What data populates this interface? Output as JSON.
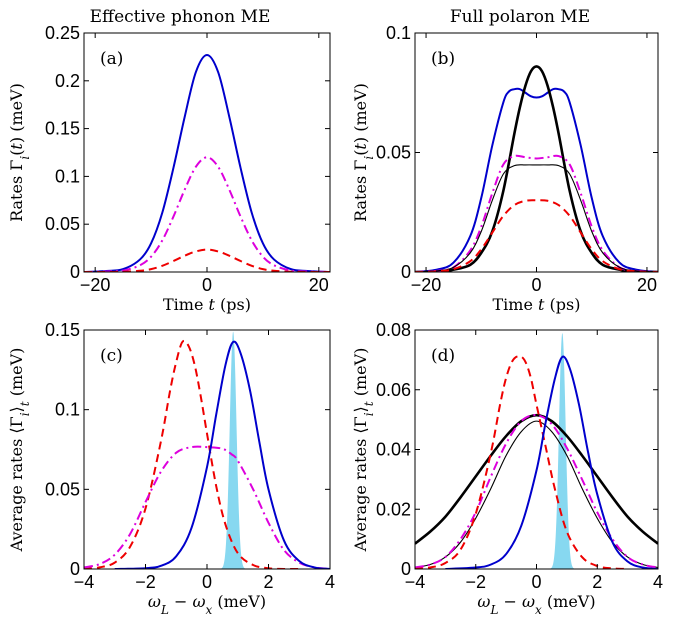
{
  "column_titles": [
    "Effective phonon ME",
    "Full polaron ME"
  ],
  "chart_data": [
    {
      "panel": "(a)",
      "type": "line",
      "xlabel": "Time t (ps)",
      "ylabel": "Rates Γ_i(t) (meV)",
      "xlim": [
        -22,
        22
      ],
      "ylim": [
        0,
        0.25
      ],
      "xticks": [
        -20,
        0,
        20
      ],
      "xtick_labels": [
        "−20",
        "0",
        "20"
      ],
      "yticks": [
        0,
        0.05,
        0.1,
        0.15,
        0.2,
        0.25
      ],
      "ytick_labels": [
        "0",
        "0.05",
        "0.1",
        "0.15",
        "0.2",
        "0.25"
      ],
      "series": [
        {
          "color": "#0000cc",
          "style": "solid",
          "width": 2,
          "x": [
            -22,
            -18,
            -15,
            -12,
            -10,
            -8,
            -6,
            -4,
            -2,
            0,
            2,
            4,
            6,
            8,
            10,
            12,
            15,
            18,
            22
          ],
          "y": [
            0,
            0.001,
            0.003,
            0.013,
            0.03,
            0.062,
            0.109,
            0.162,
            0.209,
            0.227,
            0.209,
            0.162,
            0.109,
            0.062,
            0.03,
            0.013,
            0.003,
            0.001,
            0
          ]
        },
        {
          "color": "#dd00dd",
          "style": "dashdot",
          "width": 2,
          "x": [
            -22,
            -18,
            -15,
            -12,
            -10,
            -8,
            -6,
            -4,
            -2,
            0,
            2,
            4,
            6,
            8,
            10,
            12,
            15,
            18,
            22
          ],
          "y": [
            0,
            0.0005,
            0.0015,
            0.007,
            0.016,
            0.033,
            0.058,
            0.086,
            0.11,
            0.12,
            0.11,
            0.086,
            0.058,
            0.033,
            0.016,
            0.007,
            0.0015,
            0.0005,
            0
          ]
        },
        {
          "color": "#ee0000",
          "style": "dashed",
          "width": 2,
          "x": [
            -22,
            -18,
            -15,
            -12,
            -10,
            -8,
            -6,
            -4,
            -2,
            0,
            2,
            4,
            6,
            8,
            10,
            12,
            15,
            18,
            22
          ],
          "y": [
            0,
            0,
            0.0003,
            0.0013,
            0.003,
            0.0065,
            0.0115,
            0.017,
            0.0215,
            0.0235,
            0.0215,
            0.017,
            0.0115,
            0.0065,
            0.003,
            0.0013,
            0.0003,
            0,
            0
          ]
        }
      ]
    },
    {
      "panel": "(b)",
      "type": "line",
      "xlabel": "Time t (ps)",
      "ylabel": "Rates Γ_i(t) (meV)",
      "xlim": [
        -22,
        22
      ],
      "ylim": [
        0,
        0.1
      ],
      "xticks": [
        -20,
        0,
        20
      ],
      "xtick_labels": [
        "−20",
        "0",
        "20"
      ],
      "yticks": [
        0,
        0.05,
        0.1
      ],
      "ytick_labels": [
        "0",
        "0.05",
        "0.1"
      ],
      "series": [
        {
          "color": "#0000cc",
          "style": "solid",
          "width": 2,
          "x": [
            -22,
            -18,
            -15,
            -12,
            -10,
            -8,
            -6,
            -5,
            -4,
            -3,
            -2,
            -1,
            0,
            1,
            2,
            3,
            4,
            5,
            6,
            8,
            10,
            12,
            15,
            18,
            22
          ],
          "y": [
            0,
            0.001,
            0.004,
            0.015,
            0.031,
            0.053,
            0.071,
            0.0755,
            0.0765,
            0.0765,
            0.075,
            0.0735,
            0.073,
            0.0735,
            0.075,
            0.0765,
            0.0765,
            0.0755,
            0.071,
            0.053,
            0.031,
            0.015,
            0.004,
            0.001,
            0
          ]
        },
        {
          "color": "#000000",
          "style": "solid",
          "width": 2.6,
          "x": [
            -22,
            -18,
            -15,
            -12,
            -10,
            -8,
            -6,
            -4,
            -3,
            -2,
            -1,
            0,
            1,
            2,
            3,
            4,
            6,
            8,
            10,
            12,
            15,
            18,
            22
          ],
          "y": [
            0,
            0,
            0.001,
            0.003,
            0.008,
            0.017,
            0.034,
            0.058,
            0.069,
            0.078,
            0.084,
            0.086,
            0.084,
            0.078,
            0.069,
            0.058,
            0.034,
            0.017,
            0.008,
            0.003,
            0.001,
            0,
            0
          ]
        },
        {
          "color": "#dd00dd",
          "style": "dashdot",
          "width": 2,
          "x": [
            -22,
            -18,
            -15,
            -12,
            -10,
            -8,
            -6,
            -4,
            -2,
            0,
            2,
            4,
            6,
            8,
            10,
            12,
            15,
            18,
            22
          ],
          "y": [
            0,
            0.0005,
            0.002,
            0.009,
            0.019,
            0.033,
            0.045,
            0.0485,
            0.048,
            0.0475,
            0.048,
            0.0485,
            0.045,
            0.033,
            0.019,
            0.009,
            0.002,
            0.0005,
            0
          ]
        },
        {
          "color": "#000000",
          "style": "solid",
          "width": 1.1,
          "x": [
            -22,
            -18,
            -15,
            -12,
            -10,
            -8,
            -6,
            -4,
            -2,
            0,
            2,
            4,
            6,
            8,
            10,
            12,
            15,
            18,
            22
          ],
          "y": [
            0,
            0.0005,
            0.002,
            0.008,
            0.017,
            0.03,
            0.041,
            0.0445,
            0.0448,
            0.0448,
            0.0448,
            0.0445,
            0.041,
            0.03,
            0.017,
            0.008,
            0.002,
            0.0005,
            0
          ]
        },
        {
          "color": "#ee0000",
          "style": "dashed",
          "width": 2,
          "x": [
            -22,
            -18,
            -15,
            -12,
            -10,
            -8,
            -6,
            -4,
            -2,
            0,
            2,
            4,
            6,
            8,
            10,
            12,
            15,
            18,
            22
          ],
          "y": [
            0,
            0.0003,
            0.0012,
            0.0045,
            0.0095,
            0.0165,
            0.0235,
            0.028,
            0.0298,
            0.03,
            0.0298,
            0.028,
            0.0235,
            0.0165,
            0.0095,
            0.0045,
            0.0012,
            0.0003,
            0
          ]
        }
      ]
    },
    {
      "panel": "(c)",
      "type": "line",
      "xlabel": "ω_L − ω_x (meV)",
      "ylabel": "Average rates ⟨Γ_i⟩_t (meV)",
      "xlim": [
        -4,
        4
      ],
      "ylim": [
        0,
        0.15
      ],
      "xticks": [
        -4,
        -2,
        0,
        2,
        4
      ],
      "xtick_labels": [
        "−4",
        "−2",
        "0",
        "2",
        "4"
      ],
      "yticks": [
        0,
        0.05,
        0.1,
        0.15
      ],
      "ytick_labels": [
        "0",
        "0.05",
        "0.1",
        "0.15"
      ],
      "fill": {
        "color": "#87d8f0",
        "center": 0.85,
        "sigma": 0.11,
        "peak": 0.149
      },
      "series": [
        {
          "color": "#ee0000",
          "style": "dashed",
          "width": 2,
          "x": [
            -4,
            -3.5,
            -3,
            -2.5,
            -2,
            -1.5,
            -1.2,
            -1,
            -0.8,
            -0.6,
            -0.4,
            -0.2,
            0,
            0.3,
            0.6,
            1,
            1.5,
            2,
            2.5,
            3
          ],
          "y": [
            0,
            0.001,
            0.004,
            0.014,
            0.038,
            0.08,
            0.112,
            0.13,
            0.1425,
            0.14,
            0.128,
            0.108,
            0.085,
            0.052,
            0.028,
            0.01,
            0.0025,
            0.0005,
            0,
            0
          ]
        },
        {
          "color": "#dd00dd",
          "style": "dashdot",
          "width": 2,
          "x": [
            -4,
            -3.5,
            -3,
            -2.5,
            -2,
            -1.5,
            -1,
            -0.5,
            0,
            0.5,
            0.8,
            1,
            1.5,
            2,
            2.5,
            3,
            3.5,
            4
          ],
          "y": [
            0.001,
            0.003,
            0.009,
            0.022,
            0.042,
            0.061,
            0.073,
            0.0765,
            0.0765,
            0.0755,
            0.072,
            0.068,
            0.05,
            0.029,
            0.012,
            0.004,
            0.001,
            0
          ]
        },
        {
          "color": "#0000cc",
          "style": "solid",
          "width": 2,
          "x": [
            -3,
            -2,
            -1.5,
            -1,
            -0.5,
            0,
            0.3,
            0.6,
            0.85,
            1.1,
            1.4,
            1.7,
            2,
            2.5,
            3,
            3.5,
            4
          ],
          "y": [
            0,
            0.0005,
            0.002,
            0.008,
            0.026,
            0.064,
            0.097,
            0.128,
            0.1425,
            0.135,
            0.112,
            0.08,
            0.05,
            0.018,
            0.005,
            0.001,
            0
          ]
        }
      ]
    },
    {
      "panel": "(d)",
      "type": "line",
      "xlabel": "ω_L − ω_x (meV)",
      "ylabel": "Average rates ⟨Γ_i⟩_t (meV)",
      "xlim": [
        -4,
        4
      ],
      "ylim": [
        0,
        0.08
      ],
      "xticks": [
        -4,
        -2,
        0,
        2,
        4
      ],
      "xtick_labels": [
        "−4",
        "−2",
        "0",
        "2",
        "4"
      ],
      "yticks": [
        0,
        0.02,
        0.04,
        0.06,
        0.08
      ],
      "ytick_labels": [
        "0",
        "0.02",
        "0.04",
        "0.06",
        "0.08"
      ],
      "fill": {
        "color": "#87d8f0",
        "center": 0.85,
        "sigma": 0.11,
        "peak": 0.079
      },
      "series": [
        {
          "color": "#000000",
          "style": "solid",
          "width": 2.6,
          "x": [
            -4,
            -3.5,
            -3,
            -2.5,
            -2,
            -1.5,
            -1,
            -0.5,
            0,
            0.5,
            1,
            1.5,
            2,
            2.5,
            3,
            3.5,
            4
          ],
          "y": [
            0.0085,
            0.0125,
            0.0175,
            0.024,
            0.031,
            0.038,
            0.0445,
            0.0495,
            0.0515,
            0.0495,
            0.0445,
            0.038,
            0.031,
            0.024,
            0.0175,
            0.0125,
            0.0085
          ]
        },
        {
          "color": "#000000",
          "style": "solid",
          "width": 1.1,
          "x": [
            -4,
            -3.5,
            -3,
            -2.5,
            -2,
            -1.5,
            -1,
            -0.5,
            0,
            0.5,
            1,
            1.5,
            2,
            2.5,
            3,
            3.5,
            4
          ],
          "y": [
            0.0005,
            0.0015,
            0.004,
            0.009,
            0.017,
            0.027,
            0.038,
            0.046,
            0.0495,
            0.046,
            0.038,
            0.027,
            0.017,
            0.009,
            0.004,
            0.0015,
            0.0005
          ]
        },
        {
          "color": "#dd00dd",
          "style": "dashdot",
          "width": 2,
          "x": [
            -4,
            -3.5,
            -3,
            -2.5,
            -2,
            -1.5,
            -1,
            -0.5,
            0,
            0.5,
            1,
            1.5,
            2,
            2.5,
            3,
            3.5,
            4
          ],
          "y": [
            0.0005,
            0.0015,
            0.004,
            0.01,
            0.019,
            0.031,
            0.042,
            0.0495,
            0.0515,
            0.0485,
            0.0405,
            0.03,
            0.019,
            0.01,
            0.004,
            0.0015,
            0.0005
          ]
        },
        {
          "color": "#ee0000",
          "style": "dashed",
          "width": 2,
          "x": [
            -4,
            -3.5,
            -3,
            -2.5,
            -2,
            -1.5,
            -1.2,
            -1,
            -0.8,
            -0.6,
            -0.4,
            -0.2,
            0,
            0.3,
            0.6,
            1,
            1.5,
            2,
            2.5,
            3
          ],
          "y": [
            0,
            0.0005,
            0.002,
            0.0065,
            0.0185,
            0.039,
            0.055,
            0.064,
            0.0695,
            0.0712,
            0.07,
            0.0645,
            0.055,
            0.041,
            0.027,
            0.0125,
            0.004,
            0.001,
            0.0002,
            0
          ]
        },
        {
          "color": "#0000cc",
          "style": "solid",
          "width": 2,
          "x": [
            -3,
            -2,
            -1.5,
            -1,
            -0.5,
            0,
            0.3,
            0.6,
            0.85,
            1.1,
            1.4,
            1.7,
            2,
            2.5,
            3,
            3.5,
            4
          ],
          "y": [
            0,
            0.0005,
            0.0015,
            0.005,
            0.0145,
            0.033,
            0.049,
            0.0635,
            0.071,
            0.067,
            0.055,
            0.039,
            0.025,
            0.009,
            0.0025,
            0.0005,
            0
          ]
        }
      ]
    }
  ]
}
